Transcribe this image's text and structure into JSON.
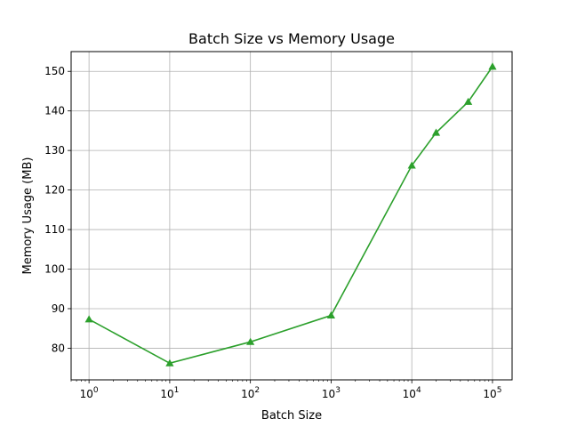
{
  "chart_data": {
    "type": "line",
    "title": "Batch Size vs Memory Usage",
    "xlabel": "Batch Size",
    "ylabel": "Memory Usage (MB)",
    "xscale": "log",
    "xlim": [
      0.6,
      175000
    ],
    "ylim": [
      72,
      155
    ],
    "grid": true,
    "x_ticks": [
      {
        "base": "10",
        "exp": "0",
        "value": 1
      },
      {
        "base": "10",
        "exp": "1",
        "value": 10
      },
      {
        "base": "10",
        "exp": "2",
        "value": 100
      },
      {
        "base": "10",
        "exp": "3",
        "value": 1000
      },
      {
        "base": "10",
        "exp": "4",
        "value": 10000
      },
      {
        "base": "10",
        "exp": "5",
        "value": 100000
      }
    ],
    "y_ticks": [
      80,
      90,
      100,
      110,
      120,
      130,
      140,
      150
    ],
    "series": [
      {
        "color": "#2ca02c",
        "marker": "triangle-up",
        "x": [
          1,
          10,
          100,
          1000,
          10000,
          20000,
          50000,
          100000
        ],
        "y": [
          87.3,
          76.2,
          81.6,
          88.3,
          126.2,
          134.5,
          142.3,
          151.2
        ]
      }
    ]
  }
}
